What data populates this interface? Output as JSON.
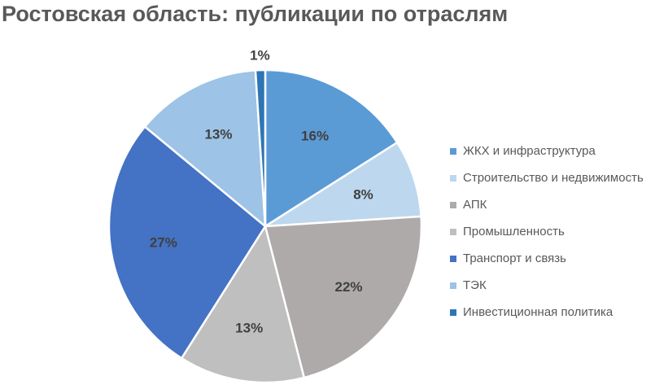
{
  "chart_data": {
    "type": "pie",
    "title": "Ростовская область: публикации по отраслям",
    "categories": [
      "ЖКХ и инфраструктура",
      "Строительство и недвижимость",
      "АПК",
      "Промышленность",
      "Транспорт и связь",
      "ТЭК",
      "Инвестиционная политика"
    ],
    "values": [
      16,
      8,
      22,
      13,
      27,
      13,
      1
    ],
    "labels": [
      "16%",
      "8%",
      "22%",
      "13%",
      "27%",
      "13%",
      "1%"
    ],
    "colors": [
      "#5b9bd5",
      "#bdd7ee",
      "#aeaaaa",
      "#bfbfbf",
      "#4472c4",
      "#9dc3e6",
      "#2e75b6"
    ],
    "legend": "right",
    "start_angle_deg": 0,
    "direction": "clockwise"
  }
}
